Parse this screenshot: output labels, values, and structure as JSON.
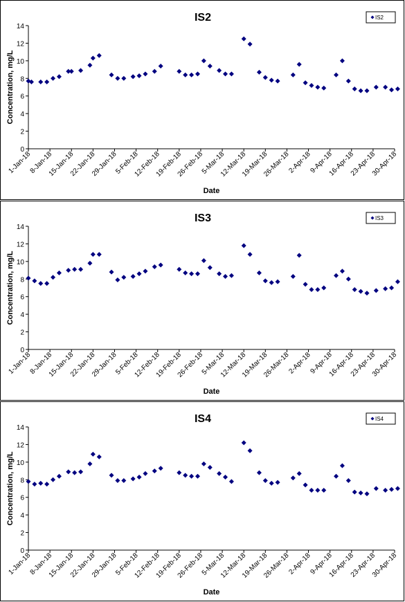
{
  "chart_data": [
    {
      "type": "scatter",
      "title": "IS2",
      "xlabel": "Date",
      "ylabel": "Concentration, mg/L",
      "xlim": [
        "2018-01-01",
        "2018-04-30"
      ],
      "ylim": [
        0,
        14
      ],
      "yticks": [
        0,
        2,
        4,
        6,
        8,
        10,
        12,
        14
      ],
      "xticks": [
        "1-Jan-18",
        "8-Jan-18",
        "15-Jan-18",
        "22-Jan-18",
        "29-Jan-18",
        "5-Feb-18",
        "12-Feb-18",
        "19-Feb-18",
        "26-Feb-18",
        "5-Mar-18",
        "12-Mar-18",
        "19-Mar-18",
        "26-Mar-18",
        "2-Apr-18",
        "9-Apr-18",
        "16-Apr-18",
        "23-Apr-18",
        "30-Apr-18"
      ],
      "legend": "top-right",
      "grid": false,
      "series": [
        {
          "name": "IS2",
          "color": "#000080",
          "marker": "diamond",
          "points": [
            [
              "2018-01-01",
              7.7
            ],
            [
              "2018-01-02",
              7.6
            ],
            [
              "2018-01-05",
              7.6
            ],
            [
              "2018-01-07",
              7.6
            ],
            [
              "2018-01-09",
              8.0
            ],
            [
              "2018-01-11",
              8.2
            ],
            [
              "2018-01-14",
              8.8
            ],
            [
              "2018-01-15",
              8.8
            ],
            [
              "2018-01-18",
              8.9
            ],
            [
              "2018-01-21",
              9.5
            ],
            [
              "2018-01-22",
              10.3
            ],
            [
              "2018-01-24",
              10.6
            ],
            [
              "2018-01-28",
              8.4
            ],
            [
              "2018-01-30",
              8.0
            ],
            [
              "2018-02-01",
              8.0
            ],
            [
              "2018-02-04",
              8.2
            ],
            [
              "2018-02-06",
              8.3
            ],
            [
              "2018-02-08",
              8.5
            ],
            [
              "2018-02-11",
              8.8
            ],
            [
              "2018-02-13",
              9.4
            ],
            [
              "2018-02-19",
              8.8
            ],
            [
              "2018-02-21",
              8.4
            ],
            [
              "2018-02-23",
              8.4
            ],
            [
              "2018-02-25",
              8.5
            ],
            [
              "2018-02-27",
              10.0
            ],
            [
              "2018-03-01",
              9.4
            ],
            [
              "2018-03-04",
              8.9
            ],
            [
              "2018-03-06",
              8.5
            ],
            [
              "2018-03-08",
              8.5
            ],
            [
              "2018-03-12",
              12.5
            ],
            [
              "2018-03-14",
              11.9
            ],
            [
              "2018-03-17",
              8.7
            ],
            [
              "2018-03-19",
              8.1
            ],
            [
              "2018-03-21",
              7.8
            ],
            [
              "2018-03-23",
              7.7
            ],
            [
              "2018-03-28",
              8.4
            ],
            [
              "2018-03-30",
              9.6
            ],
            [
              "2018-04-01",
              7.5
            ],
            [
              "2018-04-03",
              7.2
            ],
            [
              "2018-04-05",
              7.0
            ],
            [
              "2018-04-07",
              6.9
            ],
            [
              "2018-04-11",
              8.4
            ],
            [
              "2018-04-13",
              10.0
            ],
            [
              "2018-04-15",
              7.7
            ],
            [
              "2018-04-17",
              6.8
            ],
            [
              "2018-04-19",
              6.6
            ],
            [
              "2018-04-21",
              6.6
            ],
            [
              "2018-04-24",
              7.0
            ],
            [
              "2018-04-27",
              7.0
            ],
            [
              "2018-04-29",
              6.7
            ],
            [
              "2018-05-01",
              6.8
            ]
          ]
        }
      ]
    },
    {
      "type": "scatter",
      "title": "IS3",
      "xlabel": "Date",
      "ylabel": "Concentration, mg/L",
      "xlim": [
        "2018-01-01",
        "2018-04-30"
      ],
      "ylim": [
        0,
        14
      ],
      "yticks": [
        0,
        2,
        4,
        6,
        8,
        10,
        12,
        14
      ],
      "xticks": [
        "1-Jan-18",
        "8-Jan-18",
        "15-Jan-18",
        "22-Jan-18",
        "29-Jan-18",
        "5-Feb-18",
        "12-Feb-18",
        "19-Feb-18",
        "26-Feb-18",
        "5-Mar-18",
        "12-Mar-18",
        "19-Mar-18",
        "26-Mar-18",
        "2-Apr-18",
        "9-Apr-18",
        "16-Apr-18",
        "23-Apr-18",
        "30-Apr-18"
      ],
      "legend": "top-right",
      "grid": false,
      "series": [
        {
          "name": "IS3",
          "color": "#000080",
          "marker": "diamond",
          "points": [
            [
              "2018-01-01",
              8.1
            ],
            [
              "2018-01-03",
              7.8
            ],
            [
              "2018-01-05",
              7.5
            ],
            [
              "2018-01-07",
              7.5
            ],
            [
              "2018-01-09",
              8.2
            ],
            [
              "2018-01-11",
              8.7
            ],
            [
              "2018-01-14",
              9.0
            ],
            [
              "2018-01-16",
              9.1
            ],
            [
              "2018-01-18",
              9.1
            ],
            [
              "2018-01-21",
              9.8
            ],
            [
              "2018-01-22",
              10.8
            ],
            [
              "2018-01-24",
              10.8
            ],
            [
              "2018-01-28",
              8.8
            ],
            [
              "2018-01-30",
              7.9
            ],
            [
              "2018-02-01",
              8.2
            ],
            [
              "2018-02-04",
              8.3
            ],
            [
              "2018-02-06",
              8.6
            ],
            [
              "2018-02-08",
              8.9
            ],
            [
              "2018-02-11",
              9.4
            ],
            [
              "2018-02-13",
              9.6
            ],
            [
              "2018-02-19",
              9.1
            ],
            [
              "2018-02-21",
              8.7
            ],
            [
              "2018-02-23",
              8.6
            ],
            [
              "2018-02-25",
              8.6
            ],
            [
              "2018-02-27",
              10.1
            ],
            [
              "2018-03-01",
              9.3
            ],
            [
              "2018-03-04",
              8.6
            ],
            [
              "2018-03-06",
              8.3
            ],
            [
              "2018-03-08",
              8.4
            ],
            [
              "2018-03-12",
              11.8
            ],
            [
              "2018-03-14",
              10.8
            ],
            [
              "2018-03-17",
              8.7
            ],
            [
              "2018-03-19",
              7.8
            ],
            [
              "2018-03-21",
              7.6
            ],
            [
              "2018-03-23",
              7.7
            ],
            [
              "2018-03-28",
              8.3
            ],
            [
              "2018-03-30",
              10.7
            ],
            [
              "2018-04-01",
              7.4
            ],
            [
              "2018-04-03",
              6.8
            ],
            [
              "2018-04-05",
              6.8
            ],
            [
              "2018-04-07",
              7.0
            ],
            [
              "2018-04-11",
              8.4
            ],
            [
              "2018-04-13",
              8.9
            ],
            [
              "2018-04-15",
              8.0
            ],
            [
              "2018-04-17",
              6.8
            ],
            [
              "2018-04-19",
              6.6
            ],
            [
              "2018-04-21",
              6.4
            ],
            [
              "2018-04-24",
              6.7
            ],
            [
              "2018-04-27",
              6.9
            ],
            [
              "2018-04-29",
              7.0
            ],
            [
              "2018-05-01",
              7.7
            ]
          ]
        }
      ]
    },
    {
      "type": "scatter",
      "title": "IS4",
      "xlabel": "Date",
      "ylabel": "Concentration, mg/L",
      "xlim": [
        "2018-01-01",
        "2018-04-30"
      ],
      "ylim": [
        0,
        14
      ],
      "yticks": [
        0,
        2,
        4,
        6,
        8,
        10,
        12,
        14
      ],
      "xticks": [
        "1-Jan-18",
        "8-Jan-18",
        "15-Jan-18",
        "22-Jan-18",
        "29-Jan-18",
        "5-Feb-18",
        "12-Feb-18",
        "19-Feb-18",
        "26-Feb-18",
        "5-Mar-18",
        "12-Mar-18",
        "19-Mar-18",
        "26-Mar-18",
        "2-Apr-18",
        "9-Apr-18",
        "16-Apr-18",
        "23-Apr-18",
        "30-Apr-18"
      ],
      "legend": "top-right",
      "grid": false,
      "series": [
        {
          "name": "IS4",
          "color": "#000080",
          "marker": "diamond",
          "points": [
            [
              "2018-01-01",
              7.8
            ],
            [
              "2018-01-03",
              7.5
            ],
            [
              "2018-01-05",
              7.6
            ],
            [
              "2018-01-07",
              7.5
            ],
            [
              "2018-01-09",
              8.0
            ],
            [
              "2018-01-11",
              8.4
            ],
            [
              "2018-01-14",
              8.9
            ],
            [
              "2018-01-16",
              8.8
            ],
            [
              "2018-01-18",
              8.9
            ],
            [
              "2018-01-21",
              9.8
            ],
            [
              "2018-01-22",
              10.9
            ],
            [
              "2018-01-24",
              10.6
            ],
            [
              "2018-01-28",
              8.5
            ],
            [
              "2018-01-30",
              7.9
            ],
            [
              "2018-02-01",
              7.9
            ],
            [
              "2018-02-04",
              8.1
            ],
            [
              "2018-02-06",
              8.3
            ],
            [
              "2018-02-08",
              8.7
            ],
            [
              "2018-02-11",
              9.0
            ],
            [
              "2018-02-13",
              9.3
            ],
            [
              "2018-02-19",
              8.8
            ],
            [
              "2018-02-21",
              8.5
            ],
            [
              "2018-02-23",
              8.4
            ],
            [
              "2018-02-25",
              8.4
            ],
            [
              "2018-02-27",
              9.8
            ],
            [
              "2018-03-01",
              9.4
            ],
            [
              "2018-03-04",
              8.7
            ],
            [
              "2018-03-06",
              8.3
            ],
            [
              "2018-03-08",
              7.8
            ],
            [
              "2018-03-12",
              12.2
            ],
            [
              "2018-03-14",
              11.3
            ],
            [
              "2018-03-17",
              8.8
            ],
            [
              "2018-03-19",
              7.9
            ],
            [
              "2018-03-21",
              7.6
            ],
            [
              "2018-03-23",
              7.7
            ],
            [
              "2018-03-28",
              8.2
            ],
            [
              "2018-03-30",
              8.7
            ],
            [
              "2018-04-01",
              7.4
            ],
            [
              "2018-04-03",
              6.8
            ],
            [
              "2018-04-05",
              6.8
            ],
            [
              "2018-04-07",
              6.8
            ],
            [
              "2018-04-11",
              8.4
            ],
            [
              "2018-04-13",
              9.6
            ],
            [
              "2018-04-15",
              7.9
            ],
            [
              "2018-04-17",
              6.6
            ],
            [
              "2018-04-19",
              6.5
            ],
            [
              "2018-04-21",
              6.4
            ],
            [
              "2018-04-24",
              7.0
            ],
            [
              "2018-04-27",
              6.8
            ],
            [
              "2018-04-29",
              6.9
            ],
            [
              "2018-05-01",
              7.0
            ]
          ]
        }
      ]
    }
  ]
}
